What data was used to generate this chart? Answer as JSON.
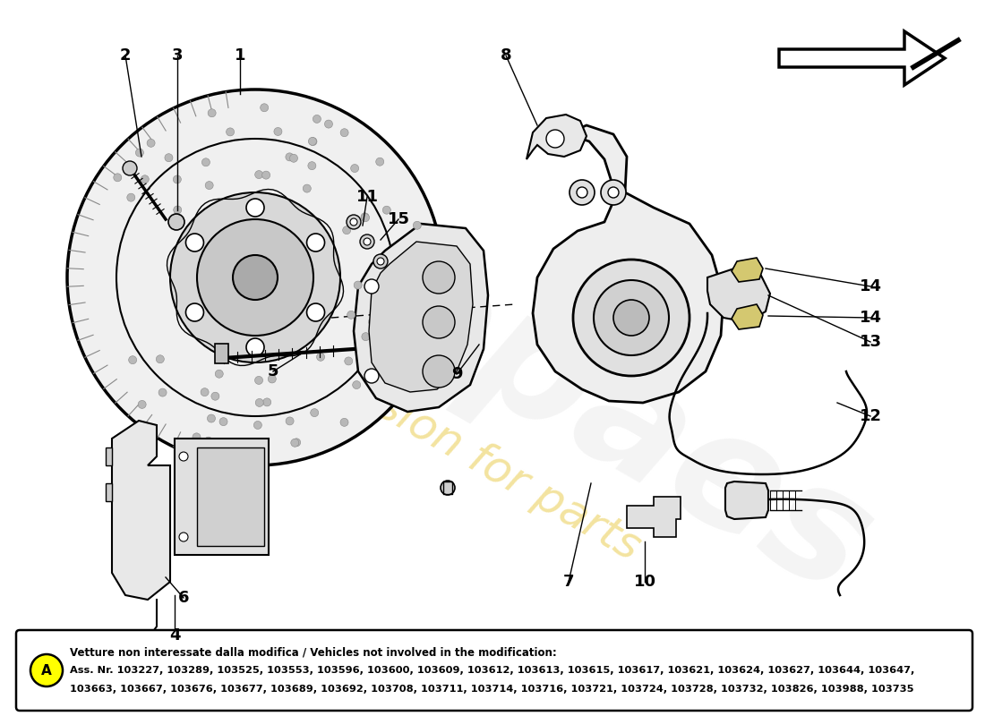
{
  "bg_color": "#ffffff",
  "bottom_box_title_bold": "Vetture non interessate dalla modifica / Vehicles not involved in the modification:",
  "bottom_box_line1": "Ass. Nr. 103227, 103289, 103525, 103553, 103596, 103600, 103609, 103612, 103613, 103615, 103617, 103621, 103624, 103627, 103644, 103647,",
  "bottom_box_line2": "103663, 103667, 103676, 103677, 103689, 103692, 103708, 103711, 103714, 103716, 103721, 103724, 103728, 103732, 103826, 103988, 103735",
  "label_A_bg": "#ffff00",
  "watermark_color": "#dddddd",
  "watermark_yellow": "#e8c840"
}
